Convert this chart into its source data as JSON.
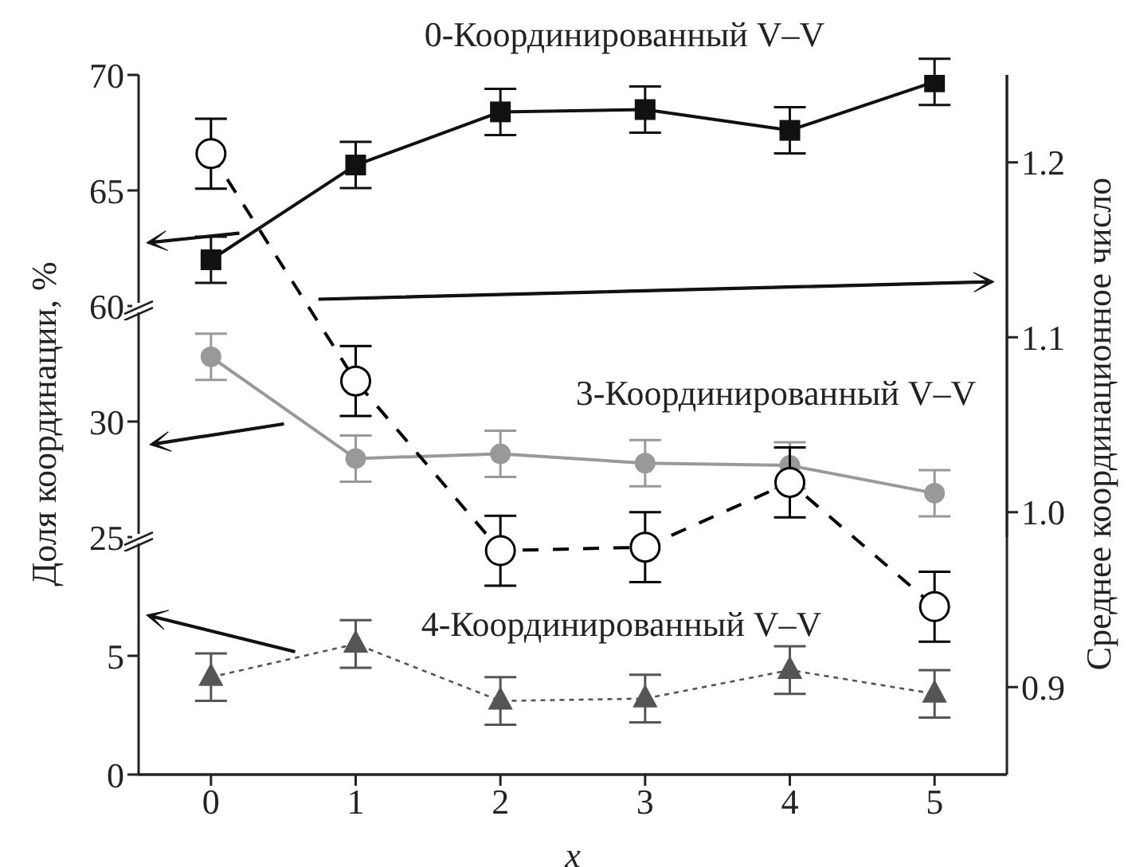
{
  "chart_data": [
    {
      "type": "line",
      "x": [
        0,
        1,
        2,
        3,
        4,
        5
      ],
      "xlim": [
        -0.5,
        5.5
      ],
      "xticks": [
        0,
        1,
        2,
        3,
        4,
        5
      ],
      "ylim": [
        60,
        70
      ],
      "yticks": [
        60,
        65,
        70
      ],
      "tick_labels": "y",
      "series": [
        {
          "name": "0-Координированный V–V",
          "color": "#111111",
          "marker": "square",
          "line_style": "solid",
          "values": [
            62.0,
            66.1,
            68.4,
            68.5,
            67.6,
            69.7
          ],
          "errors": [
            1,
            1,
            1,
            1,
            1,
            1
          ]
        }
      ]
    },
    {
      "type": "line",
      "x": [
        0,
        1,
        2,
        3,
        4,
        5
      ],
      "xlim": [
        -0.5,
        5.5
      ],
      "xticks": [
        0,
        1,
        2,
        3,
        4,
        5
      ],
      "ylim": [
        25,
        35
      ],
      "yticks": [
        25,
        30
      ],
      "tick_labels": "y",
      "series": [
        {
          "name": "3-Координированный V–V",
          "color": "#999999",
          "marker": "circle",
          "line_style": "solid",
          "values": [
            32.8,
            28.4,
            28.6,
            28.2,
            28.1,
            26.9
          ],
          "errors": [
            1,
            1,
            1,
            1,
            1,
            1
          ]
        }
      ]
    },
    {
      "type": "line",
      "x": [
        0,
        1,
        2,
        3,
        4,
        5
      ],
      "xlim": [
        -0.5,
        5.5
      ],
      "xticks": [
        0,
        1,
        2,
        3,
        4,
        5
      ],
      "ylim": [
        0,
        10
      ],
      "yticks": [
        0,
        5
      ],
      "tick_labels": "y",
      "ylabel": "Доля координации, %",
      "series": [
        {
          "name": "4-Координированный V–V",
          "color": "#555555",
          "marker": "triangle",
          "line_style": "dotted",
          "values": [
            4.1,
            5.5,
            3.1,
            3.2,
            4.4,
            3.4
          ],
          "errors": [
            1,
            1,
            1,
            1,
            1,
            1
          ]
        }
      ]
    },
    {
      "type": "line",
      "x": [
        0,
        1,
        2,
        3,
        4,
        5
      ],
      "xlim": [
        -0.5,
        5.5
      ],
      "xticks": [
        0,
        1,
        2,
        3,
        4,
        5
      ],
      "xlabel": "x",
      "y2lim": [
        0.85,
        1.25
      ],
      "y2ticks": [
        {
          "value": 0.9,
          "label": "0.9"
        },
        {
          "value": 1,
          "label": "1.0"
        },
        {
          "value": 1.1,
          "label": "1.1"
        },
        {
          "value": 1.2,
          "label": "1.2"
        }
      ],
      "y2label": "Среднее координационное число",
      "series": [
        {
          "axis": "y2",
          "color": "#000000",
          "marker": "circle",
          "line_style": "dashed",
          "values": [
            1.205,
            1.075,
            0.978,
            0.98,
            1.017,
            0.946
          ],
          "errors": [
            0.02,
            0.02,
            0.02,
            0.02,
            0.02,
            0.02
          ]
        }
      ]
    }
  ]
}
